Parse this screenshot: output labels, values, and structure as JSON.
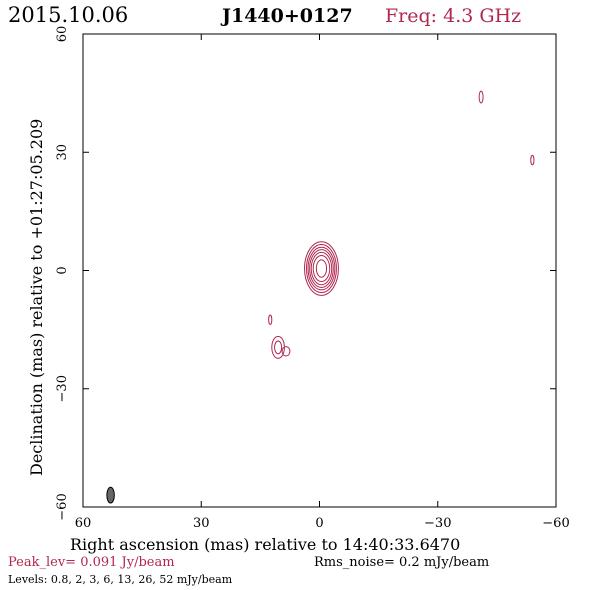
{
  "header": {
    "date": "2015.10.06",
    "source": "J1440+0127",
    "freq": "Freq: 4.3 GHz"
  },
  "colors": {
    "contour": "#b0284e",
    "axis": "#000000",
    "beam": "#666666",
    "freq_text": "#b0284e",
    "peak_text": "#b0284e"
  },
  "footer": {
    "peak": "Peak_lev=  0.091 Jy/beam",
    "rms": "Rms_noise=  0.2 mJy/beam",
    "levels": "Levels: 0.8,    2,    3,    6,   13,   26,   52 mJy/beam"
  },
  "chart_data": {
    "type": "contour",
    "xlabel": "Right ascension (mas) relative to 14:40:33.6470",
    "ylabel": "Declination (mas) relative to +01:27:05.209",
    "xlim": [
      60,
      -60
    ],
    "ylim": [
      -60,
      60
    ],
    "xticks": [
      60,
      30,
      0,
      -30,
      -60
    ],
    "yticks": [
      -60,
      -30,
      0,
      30,
      60
    ],
    "xtick_labels": [
      "60",
      "30",
      "0",
      "−30",
      "−60"
    ],
    "ytick_labels": [
      "−60",
      "−30",
      "0",
      "30",
      "60"
    ],
    "levels_mJy": [
      0.8,
      2,
      3,
      6,
      13,
      26,
      52
    ],
    "peak_Jy_per_beam": 0.091,
    "rms_mJy_per_beam": 0.2,
    "components": [
      {
        "x": -0.5,
        "y": 0.5,
        "rx": [
          4.3,
          3.8,
          3.4,
          3.0,
          2.6,
          2.1,
          1.3
        ],
        "ry": [
          6.8,
          6.1,
          5.4,
          4.8,
          4.1,
          3.3,
          2.2
        ]
      },
      {
        "x": 12.5,
        "y": -12.5,
        "rx": [
          0.4
        ],
        "ry": [
          1.2
        ]
      },
      {
        "x": 10.5,
        "y": -19.5,
        "rx": [
          1.6,
          0.9
        ],
        "ry": [
          2.8,
          1.6
        ]
      },
      {
        "x": 8.5,
        "y": -20.5,
        "rx": [
          1.0
        ],
        "ry": [
          1.2
        ]
      },
      {
        "x": -41,
        "y": 44,
        "rx": [
          0.5
        ],
        "ry": [
          1.5
        ]
      },
      {
        "x": -54,
        "y": 28,
        "rx": [
          0.4
        ],
        "ry": [
          1.2
        ]
      }
    ],
    "beam": {
      "x": 53,
      "y": -57,
      "major_mas": 4.0,
      "minor_mas": 1.9
    }
  }
}
